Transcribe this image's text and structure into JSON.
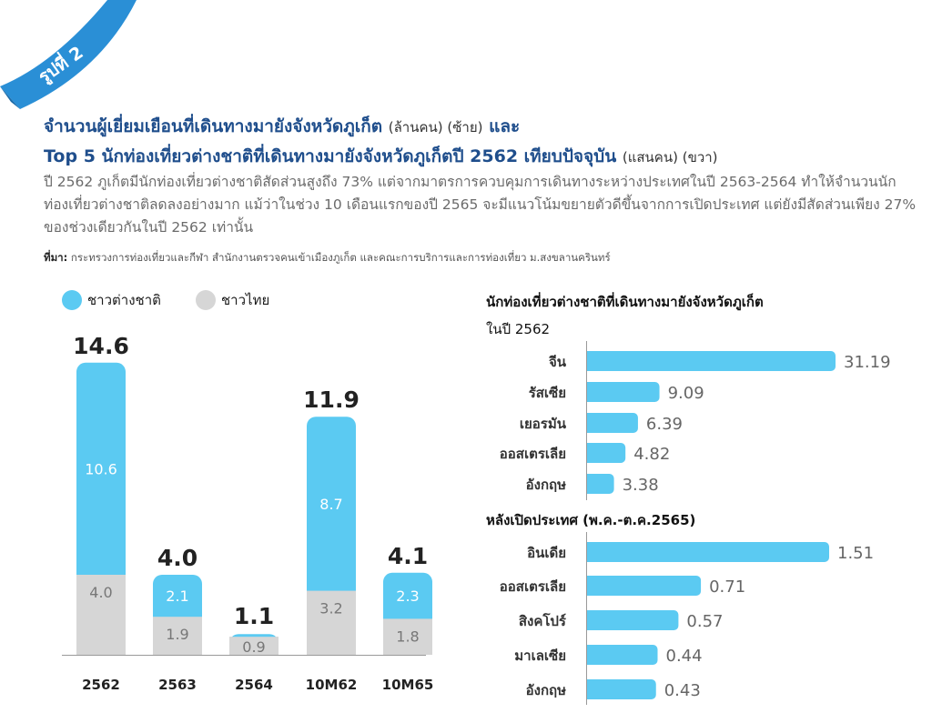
{
  "figure_tag": "รูปที่ 2",
  "title_line1": "จำนวนผู้เยี่ยมเยือนที่เดินทางมายังจังหวัดภูเก็ต",
  "title_line1_unit": "(ล้านคน) (ซ้าย)",
  "title_line1_and": "และ",
  "title_line2": "Top 5 นักท่องเที่ยวต่างชาติที่เดินทางมายังจังหวัดภูเก็ตปี 2562 เทียบปัจจุบัน",
  "title_line2_unit": "(แสนคน) (ขวา)",
  "description": "ปี 2562 ภูเก็ตมีนักท่องเที่ยวต่างชาติสัดส่วนสูงถึง 73% แต่จากมาตรการควบคุมการเดินทางระหว่างประเทศในปี 2563-2564 ทำให้จำนวนนักท่องเที่ยวต่างชาติลดลงอย่างมาก แม้ว่าในช่วง 10 เดือนแรกของปี 2565 จะมีแนวโน้มขยายตัวดีขึ้นจากการเปิดประเทศ แต่ยังมีสัดส่วนเพียง 27% ของช่วงเดียวกันในปี 2562 เท่านั้น",
  "source_label": "ที่มา:",
  "source_text": "กระทรวงการท่องเที่ยวและกีฬา สำนักงานตรวจคนเข้าเมืองภูเก็ต และคณะการบริการและการท่องเที่ยว ม.สงขลานครินทร์",
  "colors": {
    "foreign": "#5bcaf2",
    "thai": "#d6d6d6",
    "brand": "#1f4e8c",
    "ribbon": "#2a8fd6"
  },
  "chart_data": [
    {
      "type": "bar",
      "stacked": true,
      "categories": [
        "2562",
        "2563",
        "2564",
        "10M62",
        "10M65"
      ],
      "series": [
        {
          "name": "ชาวต่างชาติ",
          "values": [
            10.6,
            2.1,
            0.2,
            8.7,
            2.3
          ],
          "labels": [
            "10.6",
            "2.1",
            "",
            "8.7",
            "2.3"
          ]
        },
        {
          "name": "ชาวไทย",
          "values": [
            4.0,
            1.9,
            0.9,
            3.2,
            1.8
          ],
          "labels": [
            "4.0",
            "1.9",
            "0.9",
            "3.2",
            "1.8"
          ]
        }
      ],
      "totals": [
        "14.6",
        "4.0",
        "1.1",
        "11.9",
        "4.1"
      ],
      "legend_position": "top-left",
      "grid": false
    },
    {
      "type": "bar",
      "orientation": "horizontal",
      "title_line1": "นักท่องเที่ยวต่างชาติที่เดินทางมายังจังหวัดภูเก็ต",
      "title_line2": "ในปี 2562",
      "categories": [
        "จีน",
        "รัสเซีย",
        "เยอรมัน",
        "ออสเตรเลีย",
        "อังกฤษ"
      ],
      "values": [
        31.19,
        9.09,
        6.39,
        4.82,
        3.38
      ],
      "labels": [
        "31.19",
        "9.09",
        "6.39",
        "4.82",
        "3.38"
      ]
    },
    {
      "type": "bar",
      "orientation": "horizontal",
      "title": "หลังเปิดประเทศ (พ.ค.-ต.ค.2565)",
      "categories": [
        "อินเดีย",
        "ออสเตรเลีย",
        "สิงคโปร์",
        "มาเลเซีย",
        "อังกฤษ"
      ],
      "values": [
        1.51,
        0.71,
        0.57,
        0.44,
        0.43
      ],
      "labels": [
        "1.51",
        "0.71",
        "0.57",
        "0.44",
        "0.43"
      ]
    }
  ]
}
